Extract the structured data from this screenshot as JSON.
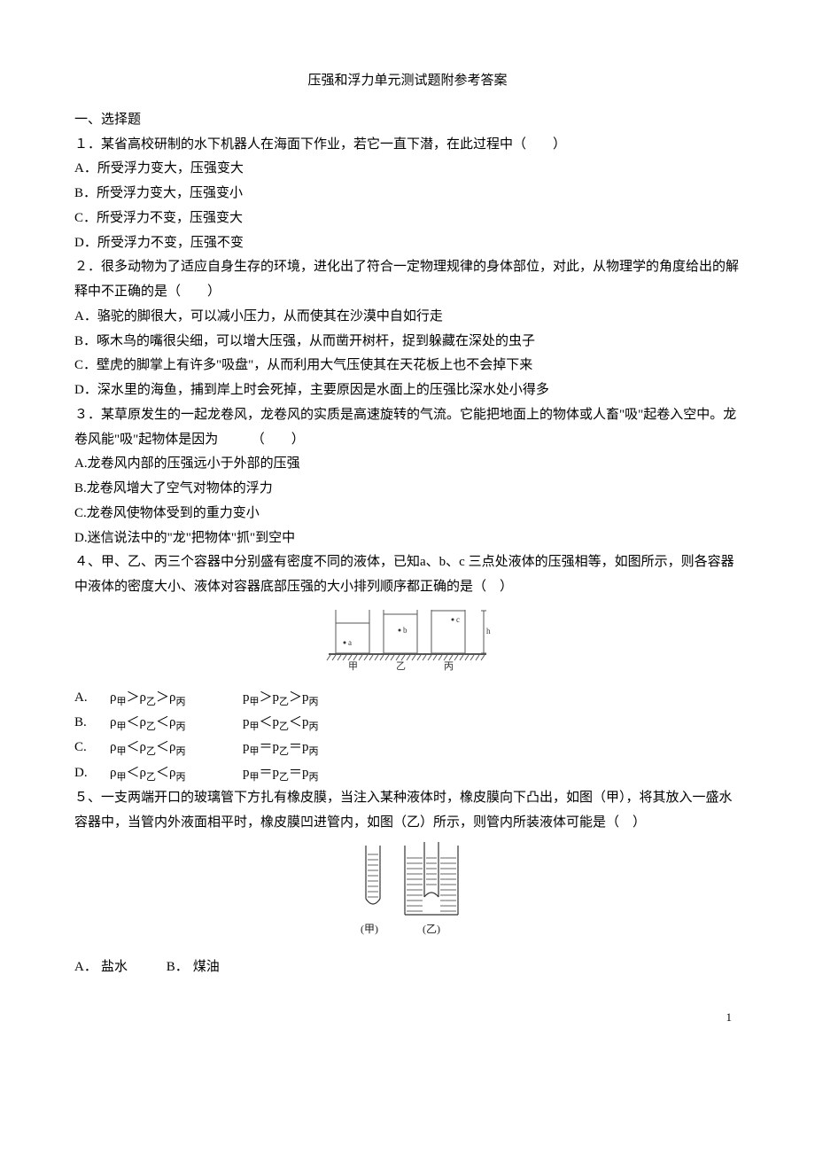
{
  "title": "压强和浮力单元测试题附参考答案",
  "section1": "一、选择题",
  "q1": {
    "stem": "１．某省高校研制的水下机器人在海面下作业，若它一直下潜，在此过程中（　　）",
    "A": "A．所受浮力变大，压强变大",
    "B": "B．所受浮力变大，压强变小",
    "C": "C．所受浮力不变，压强变大",
    "D": "D．所受浮力不变，压强不变"
  },
  "q2": {
    "stem": "２．很多动物为了适应自身生存的环境，进化出了符合一定物理规律的身体部位，对此，从物理学的角度给出的解释中不正确的是（　　）",
    "A": "A．骆驼的脚很大，可以减小压力，从而使其在沙漠中自如行走",
    "B": "B．啄木鸟的嘴很尖细，可以增大压强，从而凿开树杆，捉到躲藏在深处的虫子",
    "C": "C．壁虎的脚掌上有许多\"吸盘\"，从而利用大气压使其在天花板上也不会掉下来",
    "D": "D．深水里的海鱼，捕到岸上时会死掉，主要原因是水面上的压强比深水处小得多"
  },
  "q3": {
    "stem": "３．某草原发生的一起龙卷风，龙卷风的实质是高速旋转的气流。它能把地面上的物体或人畜\"吸\"起卷入空中。龙卷风能\"吸\"起物体是因为　　　（　　）",
    "A": "A.龙卷风内部的压强远小于外部的压强",
    "B": "B.龙卷风增大了空气对物体的浮力",
    "C": "C.龙卷风使物体受到的重力变小",
    "D": "D.迷信说法中的\"龙\"把物体\"抓\"到空中"
  },
  "q4": {
    "stem": "４、甲、乙、丙三个容器中分别盛有密度不同的液体，已知a、b、c 三点处液体的压强相等，如图所示，则各容器中液体的密度大小、液体对容器底部压强的大小排列顺序都正确的是（　）",
    "fig": {
      "width": 190,
      "height": 78,
      "bg": "#ffffff",
      "line_color": "#555555",
      "labels": {
        "a": "a",
        "b": "b",
        "c": "c",
        "h": "h"
      },
      "bottom_labels": [
        "甲",
        "乙",
        "丙"
      ]
    },
    "rows": [
      {
        "label": "A.",
        "rho": "ρ<sub>甲</sub>＞ρ<sub>乙</sub>＞ρ<sub>丙</sub>",
        "p": "p<sub>甲</sub>＞p<sub>乙</sub>＞p<sub>丙</sub>"
      },
      {
        "label": "B.",
        "rho": "ρ<sub>甲</sub>＜ρ<sub>乙</sub>＜ρ<sub>丙</sub>",
        "p": "p<sub>甲</sub>＜p<sub>乙</sub>＜p<sub>丙</sub>"
      },
      {
        "label": "C.",
        "rho": "ρ<sub>甲</sub>＜ρ<sub>乙</sub>＜ρ<sub>丙</sub>",
        "p": "p<sub>甲</sub>＝p<sub>乙</sub>＝p<sub>丙</sub>"
      },
      {
        "label": "D.",
        "rho": "ρ<sub>甲</sub>＜ρ<sub>乙</sub>＜ρ<sub>丙</sub>",
        "p": "p<sub>甲</sub>＝p<sub>乙</sub>＝p<sub>丙</sub>"
      }
    ]
  },
  "q5": {
    "stem": "５、一支两端开口的玻璃管下方扎有橡皮膜，当注入某种液体时，橡皮膜向下凸出，如图（甲），将其放入一盛水容器中，当管内外液面相平时，橡皮膜凹进管内，如图（乙）所示，则管内所装液体可能是（　）",
    "fig": {
      "width": 150,
      "height": 115,
      "labels": {
        "left": "(甲)",
        "right": "(乙)"
      }
    },
    "A": {
      "label": "A．",
      "text": "盐水"
    },
    "B": {
      "label": "B．",
      "text": "煤油"
    }
  },
  "pagenum": "1"
}
